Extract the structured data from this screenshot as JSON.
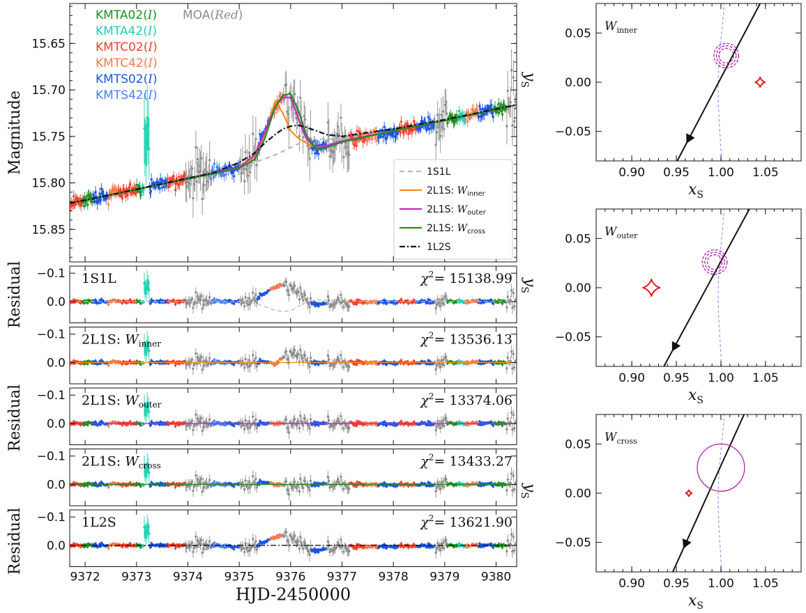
{
  "chart_data": [
    {
      "type": "scatter",
      "panel": "light-curve",
      "ylabel": "Magnitude",
      "xlim": [
        9371.7,
        9380.4
      ],
      "ylim": [
        15.885,
        15.607
      ],
      "yticks": [
        "15.65",
        "15.70",
        "15.75",
        "15.80",
        "15.85"
      ],
      "datasets": [
        {
          "name": "KMTA02(I)",
          "color": "#1f8f1f",
          "label_main": "KMTA02(",
          "label_filter": "I",
          "label_close": ")"
        },
        {
          "name": "KMTA42(I)",
          "color": "#20d0b0",
          "label_main": "KMTA42(",
          "label_filter": "I",
          "label_close": ")"
        },
        {
          "name": "KMTC02(I)",
          "color": "#f0402a",
          "label_main": "KMTC02(",
          "label_filter": "I",
          "label_close": ")"
        },
        {
          "name": "KMTC42(I)",
          "color": "#f57a50",
          "label_main": "KMTC42(",
          "label_filter": "I",
          "label_close": ")"
        },
        {
          "name": "KMTS02(I)",
          "color": "#1a55e0",
          "label_main": "KMTS02(",
          "label_filter": "I",
          "label_close": ")"
        },
        {
          "name": "KMTS42(I)",
          "color": "#4a80f0",
          "label_main": "KMTS42(",
          "label_filter": "I",
          "label_close": ")"
        },
        {
          "name": "MOA(Red)",
          "color": "#8c8c8c",
          "label_main": "MOA(",
          "label_filter": "Red",
          "label_close": ")"
        }
      ],
      "models": [
        {
          "name": "1S1L",
          "color": "#bbbbbb",
          "dash": "7,5"
        },
        {
          "name": "2L1S: Winner",
          "color": "#ff8c1a",
          "dash": "",
          "prefix": "2L1S: ",
          "w": "W",
          "sub": "inner"
        },
        {
          "name": "2L1S: Wouter",
          "color": "#cc22cc",
          "dash": "",
          "prefix": "2L1S: ",
          "w": "W",
          "sub": "outer"
        },
        {
          "name": "2L1S: Wcross",
          "color": "#238b23",
          "dash": "",
          "prefix": "2L1S: ",
          "w": "W",
          "sub": "cross"
        },
        {
          "name": "1L2S",
          "color": "#111111",
          "dash": "8,3,2,3"
        }
      ],
      "model_curves": {
        "x": [
          9371.7,
          9373.0,
          9374.5,
          9375.0,
          9375.3,
          9375.5,
          9375.7,
          9375.85,
          9376.0,
          9376.15,
          9376.3,
          9376.5,
          9376.7,
          9377.0,
          9378.0,
          9379.0,
          9380.4
        ],
        "1S1L": [
          15.822,
          15.807,
          15.79,
          15.784,
          15.778,
          15.774,
          15.77,
          15.766,
          15.762,
          15.758,
          15.755,
          15.753,
          15.753,
          15.753,
          15.744,
          15.733,
          15.716
        ],
        "2L1S: Winner": [
          15.822,
          15.807,
          15.79,
          15.784,
          15.772,
          15.748,
          15.712,
          15.725,
          15.744,
          15.752,
          15.757,
          15.762,
          15.76,
          15.756,
          15.744,
          15.733,
          15.716
        ],
        "2L1S: Wouter": [
          15.822,
          15.807,
          15.789,
          15.783,
          15.77,
          15.745,
          15.718,
          15.708,
          15.708,
          15.73,
          15.752,
          15.763,
          15.76,
          15.755,
          15.744,
          15.733,
          15.716
        ],
        "2L1S: Wcross": [
          15.822,
          15.807,
          15.79,
          15.784,
          15.775,
          15.752,
          15.718,
          15.706,
          15.704,
          15.722,
          15.748,
          15.764,
          15.762,
          15.756,
          15.744,
          15.733,
          15.716
        ],
        "1L2S": [
          15.822,
          15.807,
          15.789,
          15.778,
          15.768,
          15.757,
          15.748,
          15.742,
          15.739,
          15.738,
          15.74,
          15.744,
          15.748,
          15.75,
          15.742,
          15.732,
          15.716
        ]
      }
    },
    {
      "type": "scatter",
      "panel": "residuals",
      "ylabel": "Residual",
      "xlabel": "HJD-2450000",
      "xticks": [
        "9372",
        "9373",
        "9374",
        "9375",
        "9376",
        "9377",
        "9378",
        "9379",
        "9380"
      ],
      "yticks": [
        "−0.1",
        "0.0"
      ],
      "ylim": [
        0.075,
        -0.125
      ],
      "panels": [
        {
          "label_main": "1S1L",
          "w": "",
          "sub": "",
          "chi2": "= 15138.99",
          "color": "#bbbbbb"
        },
        {
          "label_main": "2L1S: ",
          "w": "W",
          "sub": "inner",
          "chi2": "= 13536.13",
          "color": "#ff8c1a"
        },
        {
          "label_main": "2L1S: ",
          "w": "W",
          "sub": "outer",
          "chi2": "= 13374.06",
          "color": "#cc22cc"
        },
        {
          "label_main": "2L1S: ",
          "w": "W",
          "sub": "cross",
          "chi2": "= 13433.27",
          "color": "#238b23"
        },
        {
          "label_main": "1L2S",
          "w": "",
          "sub": "",
          "chi2": "= 13621.90",
          "color": "#111111"
        }
      ]
    },
    {
      "type": "line",
      "panel": "geometry",
      "xlabel": "x",
      "xlabel_sub": "S",
      "ylabel": "y",
      "ylabel_sub": "S",
      "xlim": [
        0.86,
        1.09
      ],
      "ylim": [
        -0.08,
        0.08
      ],
      "xticks": [
        "0.90",
        "0.95",
        "1.00",
        "1.05"
      ],
      "yticks": [
        "0.05",
        "0.00",
        "−0.05"
      ],
      "panels": [
        {
          "w": "W",
          "sub": "inner",
          "caustic_x": 1.044,
          "caustic_size": 0.006,
          "source_x": 1.006,
          "source_y": 0.027,
          "radius": 0.009,
          "dashed": true,
          "traj": [
            [
              0.951,
              -0.08
            ],
            [
              1.044,
              0.08
            ]
          ],
          "arrow_x": 0.966
        },
        {
          "w": "W",
          "sub": "outer",
          "caustic_x": 0.922,
          "caustic_size": 0.01,
          "source_x": 0.993,
          "source_y": 0.026,
          "radius": 0.009,
          "dashed": true,
          "traj": [
            [
              0.936,
              -0.08
            ],
            [
              1.032,
              0.08
            ]
          ],
          "arrow_x": 0.95
        },
        {
          "w": "W",
          "sub": "cross",
          "caustic_x": 0.964,
          "caustic_size": 0.004,
          "source_x": 1.0,
          "source_y": 0.026,
          "radius": 0.024,
          "dashed": false,
          "traj": [
            [
              0.946,
              -0.08
            ],
            [
              1.026,
              0.08
            ]
          ],
          "arrow_x": 0.962
        }
      ]
    }
  ]
}
